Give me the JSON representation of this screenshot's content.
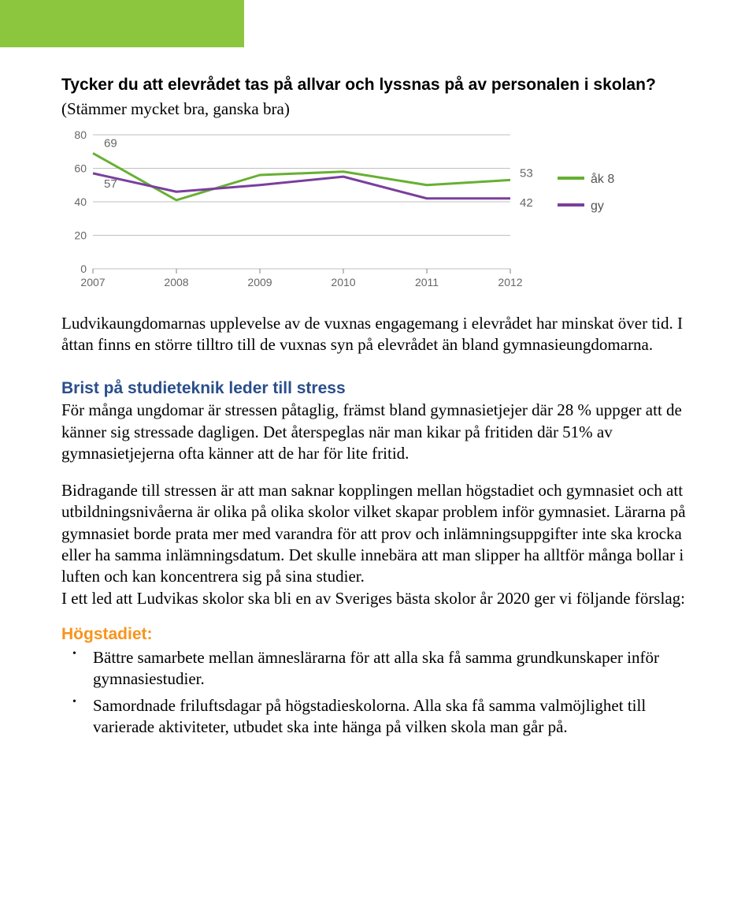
{
  "header_bar_color": "#8cc63f",
  "question": {
    "title": "Tycker du att elevrådet tas på allvar och lyssnas på av personalen i skolan?",
    "subtitle": "(Stämmer mycket bra, ganska bra)"
  },
  "chart": {
    "type": "line",
    "ylim": [
      0,
      80
    ],
    "ytick_step": 20,
    "yticks": [
      0,
      20,
      40,
      60,
      80
    ],
    "categories": [
      "2007",
      "2008",
      "2009",
      "2010",
      "2011",
      "2012"
    ],
    "grid_color": "#bfbfbf",
    "axis_color": "#808080",
    "tick_font_size": 14,
    "series": [
      {
        "name": "åk 8",
        "color": "#66b032",
        "line_width": 3,
        "values": [
          69,
          41,
          56,
          58,
          50,
          53
        ],
        "first_label": "69",
        "last_label": "53"
      },
      {
        "name": "gy",
        "color": "#7a3f9d",
        "line_width": 3,
        "values": [
          57,
          46,
          50,
          55,
          42,
          42
        ],
        "first_label": "57",
        "last_label": "42"
      }
    ],
    "legend": [
      {
        "label": "åk 8",
        "color": "#66b032"
      },
      {
        "label": "gy",
        "color": "#7a3f9d"
      }
    ]
  },
  "para1": "Ludvikaungdomarnas upplevelse av de vuxnas engagemang i elevrådet har minskat över tid. I åttan finns en större tilltro till de vuxnas syn på elevrådet än bland gymnasieungdomarna.",
  "section_heading": "Brist på studieteknik leder till stress",
  "para2": "För många ungdomar är stressen påtaglig, främst bland gymnasietjejer där 28 % uppger att de känner sig stressade dagligen. Det återspeglas när man kikar på fritiden där 51% av gymnasietjejerna ofta känner att de har för lite fritid.",
  "para3": "Bidragande till stressen är att man saknar kopplingen mellan högstadiet och gymnasiet och att utbildningsnivåerna är olika på olika skolor vilket skapar problem inför gymnasiet. Lärarna på gymnasiet borde prata mer med varandra för att prov och inlämningsuppgifter inte ska krocka eller ha samma inlämningsdatum. Det skulle innebära att man slipper ha alltför många bollar i luften och kan koncentrera sig på sina studier.",
  "para4": "I ett led att Ludvikas skolor ska bli en av Sveriges bästa skolor år 2020 ger vi följande förslag:",
  "list_heading": "Högstadiet:",
  "bullets": [
    "Bättre samarbete mellan ämneslärarna för att alla ska få samma grundkunskaper inför gymnasiestudier.",
    "Samordnade friluftsdagar på högstadieskolorna. Alla ska få samma valmöjlighet till varierade aktiviteter, utbudet ska inte hänga på vilken skola man går på."
  ]
}
